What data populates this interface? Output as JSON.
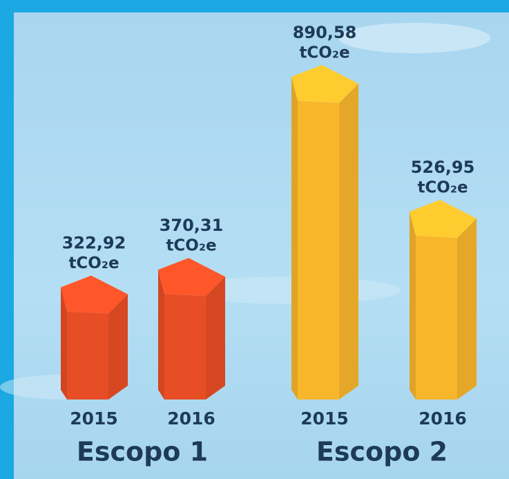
{
  "chart_data": {
    "type": "prism-bar",
    "categories": [
      "2015",
      "2016"
    ],
    "unit": "tCO₂e",
    "series": [
      {
        "name": "Escopo 1",
        "values": [
          322.92,
          370.31
        ],
        "value_labels": [
          "322,92",
          "370,31"
        ],
        "color": "#e84e25"
      },
      {
        "name": "Escopo 2",
        "values": [
          890.58,
          526.95
        ],
        "value_labels": [
          "890,58",
          "526,95"
        ],
        "color": "#f8b62b"
      }
    ]
  }
}
